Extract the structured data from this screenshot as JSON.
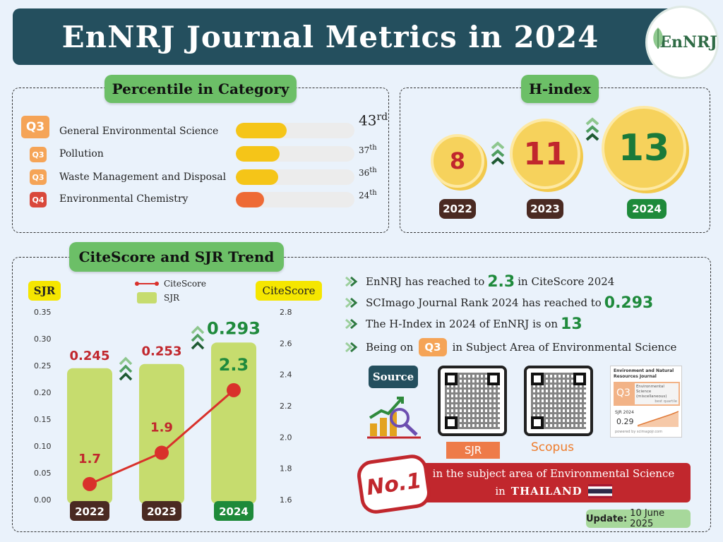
{
  "title": "EnNRJ Journal Metrics in 2024",
  "logo": {
    "text": "EnNRJ"
  },
  "percentile": {
    "heading": "Percentile in Category",
    "items": [
      {
        "quartile": "Q3",
        "label": "General Environmental Science",
        "rank": "43",
        "suffix": "rd",
        "percent": 43,
        "color": "#f5c518"
      },
      {
        "quartile": "Q3",
        "label": "Pollution",
        "rank": "37",
        "suffix": "th",
        "percent": 37,
        "color": "#f5c518"
      },
      {
        "quartile": "Q3",
        "label": "Waste Management and Disposal",
        "rank": "36",
        "suffix": "th",
        "percent": 36,
        "color": "#f5c518"
      },
      {
        "quartile": "Q4",
        "label": "Environmental Chemistry",
        "rank": "24",
        "suffix": "th",
        "percent": 24,
        "color": "#ee6a35"
      }
    ]
  },
  "hindex": {
    "heading": "H-index",
    "values": [
      {
        "year": "2022",
        "value": "8"
      },
      {
        "year": "2023",
        "value": "11"
      },
      {
        "year": "2024",
        "value": "13"
      }
    ]
  },
  "trend": {
    "heading": "CiteScore and SJR Trend",
    "bullets": [
      {
        "pre": "EnNRJ has reached to ",
        "value": "2.3",
        "post": " in CiteScore 2024"
      },
      {
        "pre": "SCImago Journal Rank 2024 has reached to ",
        "value": "0.293",
        "post": ""
      },
      {
        "pre": "The H-Index in 2024 of EnNRJ is on ",
        "value": "13",
        "post": ""
      },
      {
        "pre": "Being on ",
        "value": "Q3",
        "post": " in Subject Area of Environmental Science"
      }
    ],
    "source_label": "Source",
    "sjr_label": "SJR",
    "scopus_label": "Scopus",
    "sjr_card": {
      "title": "Environment and Natural Resources Journal",
      "quartile": "Q3",
      "category": "Environmental Science (miscellaneous)",
      "best": "best quartile",
      "sjr_label": "SJR 2024",
      "sjr_value": "0.29",
      "powered": "powered by scimagojr.com"
    },
    "no1": {
      "badge": "No.1",
      "line1": "in the subject area of Environmental Science",
      "line2_pre": "in",
      "line2_country": "THAILAND"
    },
    "update_label": "Update:",
    "update_date": "10 June 2025"
  },
  "chart_data": {
    "type": "bar+line",
    "categories": [
      "2022",
      "2023",
      "2024"
    ],
    "series": [
      {
        "name": "SJR",
        "type": "bar",
        "axis": "left",
        "values": [
          0.245,
          0.253,
          0.293
        ],
        "labels": [
          "0.245",
          "0.253",
          "0.293"
        ],
        "color": "#c6dc6e"
      },
      {
        "name": "CiteScore",
        "type": "line",
        "axis": "right",
        "values": [
          1.7,
          1.9,
          2.3
        ],
        "labels": [
          "1.7",
          "1.9",
          "2.3"
        ],
        "color": "#d9312b"
      }
    ],
    "left_axis": {
      "label": "SJR",
      "min": 0,
      "max": 0.35,
      "ticks": [
        "0.35",
        "0.30",
        "0.25",
        "0.20",
        "0.15",
        "0.10",
        "0.05",
        "0.00"
      ]
    },
    "right_axis": {
      "label": "CiteScore",
      "min": 1.6,
      "max": 2.8,
      "ticks": [
        "2.8",
        "2.6",
        "2.4",
        "2.2",
        "2.0",
        "1.8",
        "1.6"
      ]
    },
    "legend": [
      {
        "name": "CiteScore"
      },
      {
        "name": "SJR"
      }
    ],
    "legend_position": "top-center"
  }
}
